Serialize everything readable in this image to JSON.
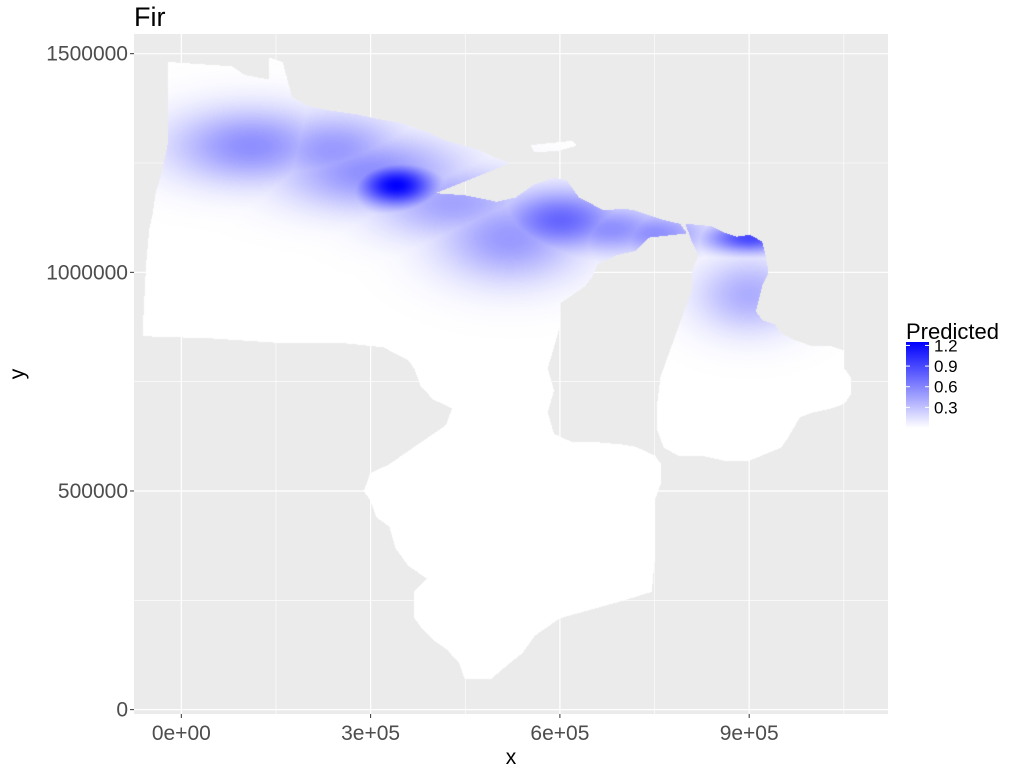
{
  "chart_data": {
    "type": "heatmap",
    "title": "Fir",
    "xlabel": "x",
    "ylabel": "y",
    "xlim": [
      -75000,
      1120000
    ],
    "ylim": [
      -10000,
      1545000
    ],
    "x_ticks": [
      0,
      300000,
      600000,
      900000
    ],
    "x_tick_labels": [
      "0e+00",
      "3e+05",
      "6e+05",
      "9e+05"
    ],
    "y_ticks": [
      0,
      500000,
      1000000,
      1500000
    ],
    "y_tick_labels": [
      "0",
      "500000",
      "1000000",
      "1500000"
    ],
    "grid": true,
    "panel_background": "#ebebeb",
    "grid_color": "#ffffff",
    "fill": {
      "name": "Predicted",
      "low_color": "#ffffff",
      "high_color": "#0000ff",
      "range": [
        0,
        1.25
      ],
      "breaks": [
        1.2,
        0.9,
        0.6,
        0.3
      ],
      "break_labels": [
        "1.2",
        "0.9",
        "0.6",
        "0.3"
      ]
    },
    "legend_position": "right",
    "regions": [
      {
        "name": "mainland",
        "points": [
          [
            -20000,
            1480000
          ],
          [
            80000,
            1470000
          ],
          [
            100000,
            1450000
          ],
          [
            140000,
            1440000
          ],
          [
            140000,
            1490000
          ],
          [
            160000,
            1480000
          ],
          [
            175000,
            1400000
          ],
          [
            200000,
            1380000
          ],
          [
            230000,
            1370000
          ],
          [
            280000,
            1360000
          ],
          [
            310000,
            1350000
          ],
          [
            350000,
            1340000
          ],
          [
            390000,
            1320000
          ],
          [
            420000,
            1300000
          ],
          [
            470000,
            1280000
          ],
          [
            500000,
            1260000
          ],
          [
            520000,
            1250000
          ],
          [
            400000,
            1180000
          ],
          [
            450000,
            1175000
          ],
          [
            500000,
            1160000
          ],
          [
            530000,
            1170000
          ],
          [
            560000,
            1200000
          ],
          [
            590000,
            1215000
          ],
          [
            610000,
            1210000
          ],
          [
            630000,
            1170000
          ],
          [
            670000,
            1140000
          ],
          [
            700000,
            1145000
          ],
          [
            720000,
            1140000
          ],
          [
            760000,
            1120000
          ],
          [
            790000,
            1110000
          ],
          [
            800000,
            1090000
          ],
          [
            740000,
            1080000
          ],
          [
            720000,
            1050000
          ],
          [
            690000,
            1040000
          ],
          [
            660000,
            1020000
          ],
          [
            650000,
            990000
          ],
          [
            640000,
            970000
          ],
          [
            620000,
            950000
          ],
          [
            600000,
            930000
          ],
          [
            600000,
            880000
          ],
          [
            590000,
            830000
          ],
          [
            580000,
            780000
          ],
          [
            590000,
            730000
          ],
          [
            580000,
            680000
          ],
          [
            590000,
            630000
          ],
          [
            620000,
            610000
          ],
          [
            660000,
            610000
          ],
          [
            700000,
            605000
          ],
          [
            720000,
            600000
          ],
          [
            750000,
            580000
          ],
          [
            760000,
            560000
          ],
          [
            760000,
            520000
          ],
          [
            750000,
            480000
          ],
          [
            750000,
            420000
          ],
          [
            750000,
            350000
          ],
          [
            745000,
            270000
          ],
          [
            700000,
            250000
          ],
          [
            650000,
            230000
          ],
          [
            600000,
            210000
          ],
          [
            580000,
            190000
          ],
          [
            560000,
            170000
          ],
          [
            540000,
            130000
          ],
          [
            510000,
            95000
          ],
          [
            490000,
            70000
          ],
          [
            450000,
            70000
          ],
          [
            440000,
            110000
          ],
          [
            420000,
            140000
          ],
          [
            400000,
            160000
          ],
          [
            380000,
            190000
          ],
          [
            370000,
            210000
          ],
          [
            370000,
            270000
          ],
          [
            390000,
            300000
          ],
          [
            360000,
            330000
          ],
          [
            340000,
            370000
          ],
          [
            330000,
            420000
          ],
          [
            310000,
            440000
          ],
          [
            300000,
            480000
          ],
          [
            290000,
            500000
          ],
          [
            300000,
            540000
          ],
          [
            330000,
            560000
          ],
          [
            360000,
            590000
          ],
          [
            390000,
            620000
          ],
          [
            420000,
            650000
          ],
          [
            430000,
            690000
          ],
          [
            400000,
            710000
          ],
          [
            380000,
            740000
          ],
          [
            370000,
            780000
          ],
          [
            360000,
            800000
          ],
          [
            320000,
            830000
          ],
          [
            250000,
            840000
          ],
          [
            150000,
            840000
          ],
          [
            50000,
            850000
          ],
          [
            -60000,
            855000
          ],
          [
            -60000,
            880000
          ],
          [
            -55000,
            1020000
          ],
          [
            -50000,
            1100000
          ],
          [
            -45000,
            1130000
          ],
          [
            -40000,
            1180000
          ],
          [
            -30000,
            1230000
          ],
          [
            -20000,
            1300000
          ]
        ]
      },
      {
        "name": "lower-peninsula",
        "points": [
          [
            800000,
            1110000
          ],
          [
            840000,
            1105000
          ],
          [
            860000,
            1090000
          ],
          [
            880000,
            1080000
          ],
          [
            900000,
            1085000
          ],
          [
            920000,
            1070000
          ],
          [
            925000,
            1040000
          ],
          [
            930000,
            1000000
          ],
          [
            920000,
            970000
          ],
          [
            915000,
            940000
          ],
          [
            910000,
            910000
          ],
          [
            920000,
            890000
          ],
          [
            940000,
            880000
          ],
          [
            950000,
            860000
          ],
          [
            970000,
            845000
          ],
          [
            1000000,
            830000
          ],
          [
            1030000,
            830000
          ],
          [
            1050000,
            820000
          ],
          [
            1050000,
            780000
          ],
          [
            1060000,
            760000
          ],
          [
            1060000,
            720000
          ],
          [
            1050000,
            700000
          ],
          [
            1030000,
            690000
          ],
          [
            1000000,
            680000
          ],
          [
            980000,
            670000
          ],
          [
            960000,
            620000
          ],
          [
            950000,
            600000
          ],
          [
            900000,
            570000
          ],
          [
            860000,
            570000
          ],
          [
            830000,
            580000
          ],
          [
            790000,
            580000
          ],
          [
            765000,
            600000
          ],
          [
            755000,
            640000
          ],
          [
            755000,
            700000
          ],
          [
            760000,
            760000
          ],
          [
            770000,
            800000
          ],
          [
            785000,
            860000
          ],
          [
            800000,
            920000
          ],
          [
            810000,
            960000
          ],
          [
            810000,
            1000000
          ],
          [
            820000,
            1040000
          ],
          [
            810000,
            1070000
          ]
        ]
      },
      {
        "name": "isle-royale",
        "points": [
          [
            555000,
            1290000
          ],
          [
            620000,
            1300000
          ],
          [
            625000,
            1290000
          ],
          [
            600000,
            1280000
          ],
          [
            560000,
            1275000
          ]
        ]
      }
    ],
    "hotspots": [
      {
        "x": 110000,
        "y": 1290000,
        "value": 0.55,
        "sx": 90000,
        "sy": 60000
      },
      {
        "x": 240000,
        "y": 1280000,
        "value": 0.5,
        "sx": 80000,
        "sy": 60000
      },
      {
        "x": 340000,
        "y": 1200000,
        "value": 1.25,
        "sx": 45000,
        "sy": 35000
      },
      {
        "x": 300000,
        "y": 1230000,
        "value": 0.55,
        "sx": 100000,
        "sy": 60000
      },
      {
        "x": 430000,
        "y": 1160000,
        "value": 0.45,
        "sx": 90000,
        "sy": 60000
      },
      {
        "x": 520000,
        "y": 1080000,
        "value": 0.5,
        "sx": 80000,
        "sy": 70000
      },
      {
        "x": 600000,
        "y": 1120000,
        "value": 0.75,
        "sx": 70000,
        "sy": 50000
      },
      {
        "x": 680000,
        "y": 1100000,
        "value": 0.55,
        "sx": 70000,
        "sy": 40000
      },
      {
        "x": 750000,
        "y": 1090000,
        "value": 0.55,
        "sx": 60000,
        "sy": 35000
      },
      {
        "x": 900000,
        "y": 1080000,
        "value": 0.9,
        "sx": 50000,
        "sy": 25000
      },
      {
        "x": 900000,
        "y": 950000,
        "value": 0.4,
        "sx": 60000,
        "sy": 60000
      }
    ]
  }
}
